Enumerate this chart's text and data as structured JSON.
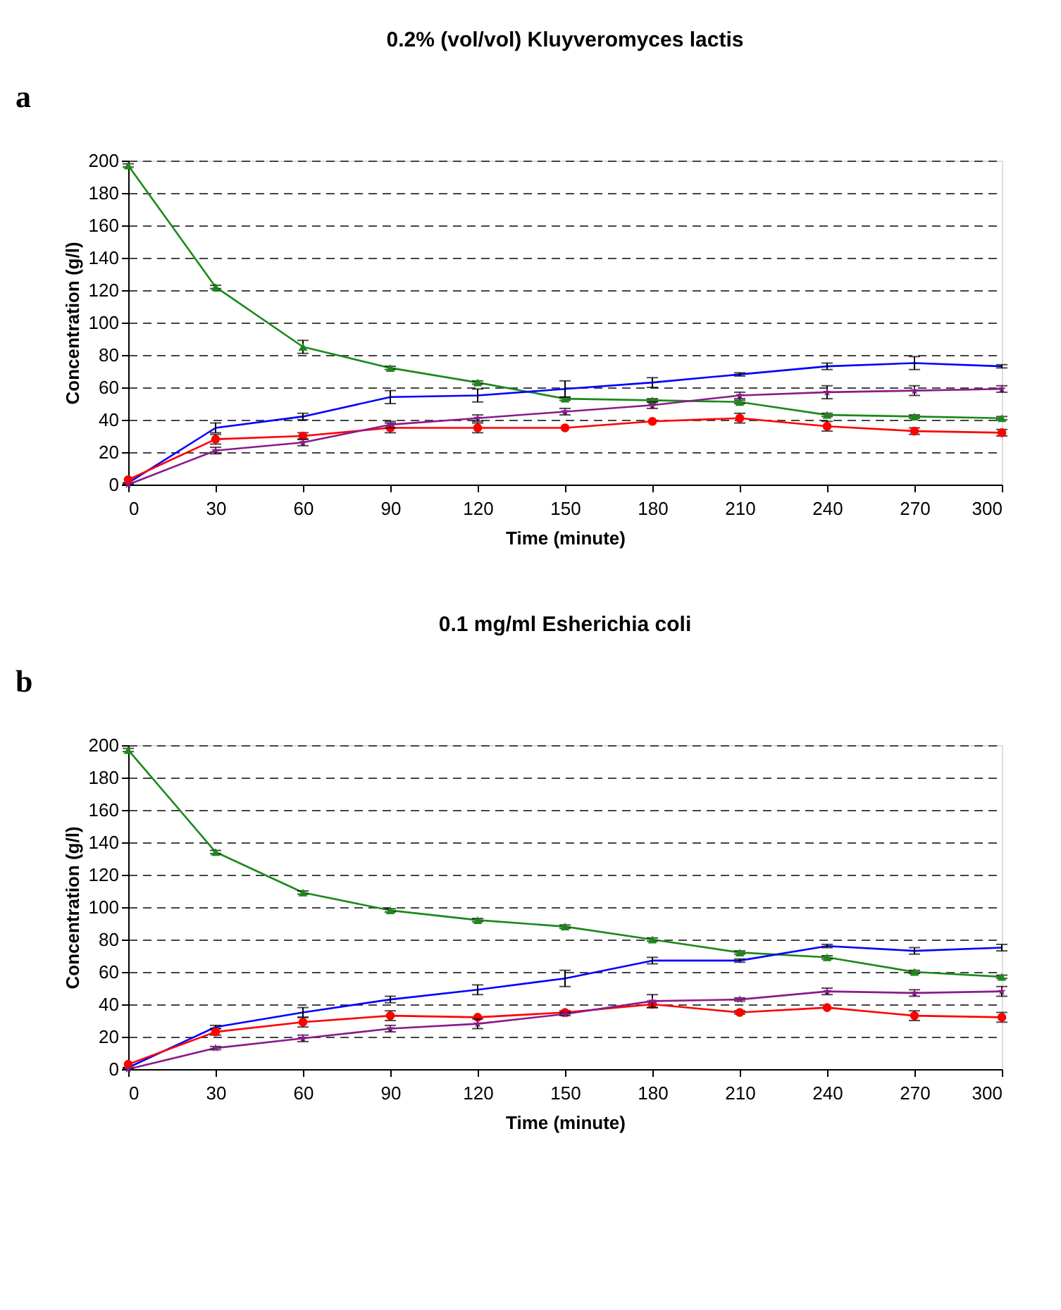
{
  "chart_data": [
    {
      "type": "line",
      "title": "0.2% (vol/vol) Kluyveromyces lactis",
      "xlabel": "Time (minute)",
      "ylabel": "Concentration (g/l)",
      "annotations": [
        "a"
      ],
      "x": [
        0,
        30,
        60,
        90,
        120,
        150,
        180,
        210,
        240,
        270,
        300
      ],
      "xlim": [
        0,
        300
      ],
      "xticks": [
        0,
        30,
        60,
        90,
        120,
        150,
        180,
        210,
        240,
        270,
        300
      ],
      "ylim": [
        0,
        200
      ],
      "yticks": [
        0,
        20,
        40,
        60,
        80,
        100,
        120,
        140,
        160,
        180,
        200
      ],
      "grid": "y",
      "series": [
        {
          "color": "#1a8a1a",
          "marker": "triangle",
          "values": [
            197,
            122,
            85,
            72,
            63,
            53,
            52,
            51,
            43,
            42,
            41
          ],
          "errors": [
            1,
            1,
            4,
            1,
            1,
            1,
            1,
            1,
            1,
            1,
            1
          ]
        },
        {
          "color": "#0000ff",
          "marker": "none",
          "values": [
            1,
            35,
            42,
            54,
            55,
            59,
            63,
            68,
            73,
            75,
            73
          ],
          "errors": [
            0,
            3,
            2,
            4,
            4,
            5,
            3,
            1,
            2,
            4,
            1
          ]
        },
        {
          "color": "#ff0000",
          "marker": "circle",
          "values": [
            3,
            28,
            30,
            35,
            35,
            35,
            39,
            41,
            36,
            33,
            32
          ],
          "errors": [
            null,
            3,
            2,
            3,
            3,
            null,
            null,
            3,
            3,
            2,
            2
          ]
        },
        {
          "color": "#8b1a8b",
          "marker": "star",
          "values": [
            0,
            21,
            26,
            37,
            41,
            45,
            49,
            55,
            57,
            58,
            59
          ],
          "errors": [
            0,
            2,
            2,
            2,
            2,
            2,
            2,
            2,
            4,
            3,
            2
          ]
        }
      ]
    },
    {
      "type": "line",
      "title": "0.1 mg/ml Esherichia coli",
      "xlabel": "Time (minute)",
      "ylabel": "Concentration (g/l)",
      "annotations": [
        "b"
      ],
      "x": [
        0,
        30,
        60,
        90,
        120,
        150,
        180,
        210,
        240,
        270,
        300
      ],
      "xlim": [
        0,
        300
      ],
      "xticks": [
        0,
        30,
        60,
        90,
        120,
        150,
        180,
        210,
        240,
        270,
        300
      ],
      "ylim": [
        0,
        200
      ],
      "yticks": [
        0,
        20,
        40,
        60,
        80,
        100,
        120,
        140,
        160,
        180,
        200
      ],
      "grid": "y",
      "series": [
        {
          "color": "#1a8a1a",
          "marker": "triangle",
          "values": [
            197,
            134,
            109,
            98,
            92,
            88,
            80,
            72,
            69,
            60,
            57
          ],
          "errors": [
            1,
            1,
            1,
            1,
            1,
            1,
            1,
            1,
            1,
            1,
            1
          ]
        },
        {
          "color": "#0000ff",
          "marker": "none",
          "values": [
            1,
            26,
            35,
            43,
            49,
            56,
            67,
            67,
            76,
            73,
            75
          ],
          "errors": [
            0,
            1,
            3,
            2,
            3,
            5,
            2,
            1,
            1,
            2,
            2
          ]
        },
        {
          "color": "#ff0000",
          "marker": "circle",
          "values": [
            3,
            23,
            29,
            33,
            32,
            35,
            40,
            35,
            38,
            33,
            32
          ],
          "errors": [
            null,
            2,
            3,
            3,
            null,
            1,
            2,
            1,
            null,
            3,
            3
          ]
        },
        {
          "color": "#8b1a8b",
          "marker": "star",
          "values": [
            0,
            13,
            19,
            25,
            28,
            34,
            42,
            43,
            48,
            47,
            48
          ],
          "errors": [
            0,
            1,
            2,
            2,
            3,
            1,
            4,
            1,
            2,
            2,
            3
          ]
        }
      ]
    }
  ]
}
